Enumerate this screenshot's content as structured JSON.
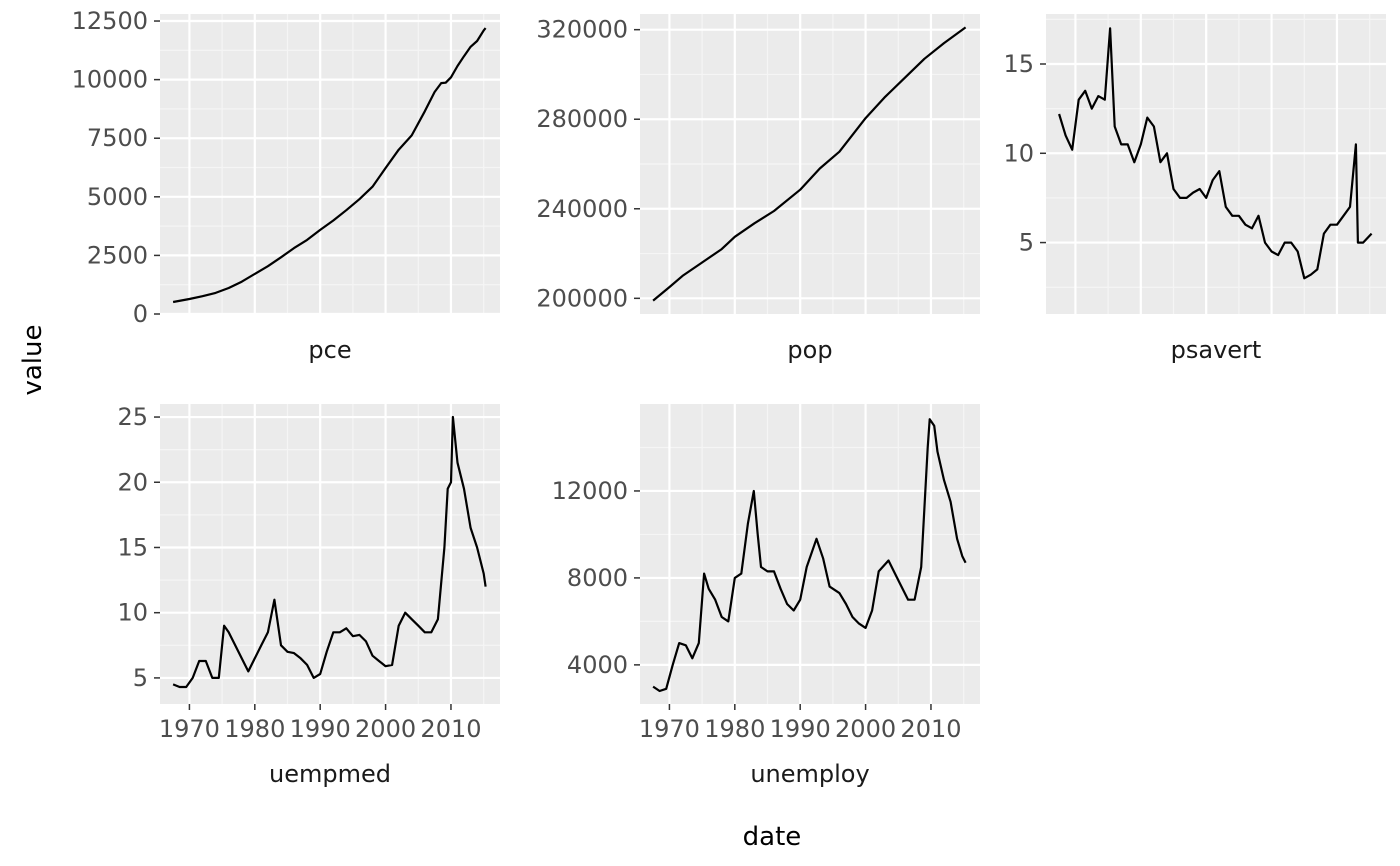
{
  "figure": {
    "xlabel": "date",
    "ylabel": "value",
    "colors": {
      "panel_background": "#ebebeb",
      "grid_major": "#ffffff",
      "grid_minor": "#f5f5f5",
      "line": "#000000",
      "tick_text": "#4d4d4d",
      "strip_text": "#1a1a1a"
    }
  },
  "chart_data": [
    {
      "type": "line",
      "facet": "pce",
      "xlabel": "date",
      "ylabel": "value",
      "grid": true,
      "xlim": [
        1965.5,
        2017.5
      ],
      "ylim": [
        0,
        12800
      ],
      "xticks": [
        1970,
        1980,
        1990,
        2000,
        2010
      ],
      "show_xtick_labels": false,
      "yticks": [
        0,
        2500,
        5000,
        7500,
        10000,
        12500
      ],
      "ytick_labels": [
        "0",
        "2500",
        "5000",
        "7500",
        "10000",
        "12500"
      ],
      "series": [
        {
          "x": [
            1967.5,
            1970,
            1972,
            1974,
            1976,
            1978,
            1980,
            1982,
            1984,
            1986,
            1988,
            1990,
            1992,
            1994,
            1996,
            1998,
            2000,
            2002,
            2004,
            2006,
            2007.5,
            2008.5,
            2009.2,
            2010,
            2011,
            2012,
            2013,
            2014,
            2015,
            2015.3
          ],
          "y": [
            510,
            640,
            760,
            900,
            1110,
            1380,
            1710,
            2040,
            2420,
            2810,
            3160,
            3590,
            3990,
            4430,
            4900,
            5430,
            6230,
            7010,
            7620,
            8650,
            9470,
            9850,
            9870,
            10100,
            10580,
            11000,
            11400,
            11650,
            12100,
            12200
          ]
        }
      ]
    },
    {
      "type": "line",
      "facet": "pop",
      "xlabel": "date",
      "ylabel": "value",
      "grid": true,
      "xlim": [
        1965.5,
        2017.5
      ],
      "ylim": [
        193000,
        327000
      ],
      "xticks": [
        1970,
        1980,
        1990,
        2000,
        2010
      ],
      "show_xtick_labels": false,
      "yticks": [
        200000,
        240000,
        280000,
        320000
      ],
      "ytick_labels": [
        "200000",
        "240000",
        "280000",
        "320000"
      ],
      "series": [
        {
          "x": [
            1967.5,
            1970,
            1972,
            1975,
            1978,
            1980,
            1983,
            1986,
            1990,
            1993,
            1996,
            2000,
            2003,
            2006,
            2009,
            2012,
            2015.3
          ],
          "y": [
            199000,
            205000,
            210000,
            216000,
            222000,
            227500,
            233500,
            239000,
            248500,
            258000,
            265500,
            280500,
            290000,
            298500,
            307000,
            314000,
            321000
          ]
        }
      ]
    },
    {
      "type": "line",
      "facet": "psavert",
      "xlabel": "date",
      "ylabel": "value",
      "grid": true,
      "xlim": [
        1965.5,
        2017.5
      ],
      "ylim": [
        1.0,
        17.8
      ],
      "xticks": [
        1970,
        1980,
        1990,
        2000,
        2010
      ],
      "show_xtick_labels": false,
      "yticks": [
        5,
        10,
        15
      ],
      "ytick_labels": [
        "5",
        "10",
        "15"
      ],
      "series": [
        {
          "x": [
            1967.5,
            1968.5,
            1969.5,
            1970.5,
            1971.5,
            1972.5,
            1973.5,
            1974.5,
            1975.3,
            1976,
            1977,
            1978,
            1979,
            1980,
            1981,
            1982,
            1983,
            1984,
            1985,
            1986,
            1987,
            1988,
            1989,
            1990,
            1991,
            1992,
            1993,
            1994,
            1995,
            1996,
            1997,
            1998,
            1999,
            2000,
            2001,
            2002,
            2003,
            2004,
            2005,
            2006,
            2007,
            2008,
            2009,
            2010,
            2011,
            2012,
            2012.9,
            2013.2,
            2014,
            2015.3
          ],
          "y": [
            12.2,
            11.0,
            10.2,
            13.0,
            13.5,
            12.5,
            13.2,
            13.0,
            17.0,
            11.5,
            10.5,
            10.5,
            9.5,
            10.5,
            12.0,
            11.5,
            9.5,
            10.0,
            8.0,
            7.5,
            7.5,
            7.8,
            8.0,
            7.5,
            8.5,
            9.0,
            7.0,
            6.5,
            6.5,
            6.0,
            5.8,
            6.5,
            5.0,
            4.5,
            4.3,
            5.0,
            5.0,
            4.5,
            3.0,
            3.2,
            3.5,
            5.5,
            6.0,
            6.0,
            6.5,
            7.0,
            10.5,
            5.0,
            5.0,
            5.5
          ]
        }
      ]
    },
    {
      "type": "line",
      "facet": "uempmed",
      "xlabel": "date",
      "ylabel": "value",
      "grid": true,
      "xlim": [
        1965.5,
        2017.5
      ],
      "ylim": [
        3.0,
        26.0
      ],
      "xticks": [
        1970,
        1980,
        1990,
        2000,
        2010
      ],
      "xtick_labels": [
        "1970",
        "1980",
        "1990",
        "2000",
        "2010"
      ],
      "show_xtick_labels": true,
      "yticks": [
        5,
        10,
        15,
        20,
        25
      ],
      "ytick_labels": [
        "5",
        "10",
        "15",
        "20",
        "25"
      ],
      "series": [
        {
          "x": [
            1967.5,
            1968.5,
            1969.5,
            1970.5,
            1971.5,
            1972.5,
            1973.5,
            1974.5,
            1975.3,
            1976,
            1977,
            1978,
            1979,
            1980,
            1981,
            1982,
            1983,
            1984,
            1985,
            1986,
            1987,
            1988,
            1989,
            1990,
            1991,
            1992,
            1993,
            1994,
            1995,
            1996,
            1997,
            1998,
            1999,
            2000,
            2001,
            2002,
            2003,
            2004,
            2005,
            2006,
            2007,
            2008,
            2009,
            2009.5,
            2010,
            2010.3,
            2011,
            2012,
            2013,
            2014,
            2015,
            2015.3
          ],
          "y": [
            4.5,
            4.3,
            4.3,
            5.0,
            6.3,
            6.3,
            5.0,
            5.0,
            9.0,
            8.5,
            7.5,
            6.5,
            5.5,
            6.5,
            7.5,
            8.5,
            11.0,
            7.5,
            7.0,
            6.9,
            6.5,
            6.0,
            5.0,
            5.3,
            7.0,
            8.5,
            8.5,
            8.8,
            8.2,
            8.3,
            7.8,
            6.7,
            6.3,
            5.9,
            6.0,
            9.0,
            10.0,
            9.5,
            9.0,
            8.5,
            8.5,
            9.5,
            15.0,
            19.5,
            20.0,
            25.0,
            21.5,
            19.5,
            16.5,
            15.0,
            13.0,
            12.0
          ]
        }
      ]
    },
    {
      "type": "line",
      "facet": "unemploy",
      "xlabel": "date",
      "ylabel": "value",
      "grid": true,
      "xlim": [
        1965.5,
        2017.5
      ],
      "ylim": [
        2200,
        16000
      ],
      "xticks": [
        1970,
        1980,
        1990,
        2000,
        2010
      ],
      "xtick_labels": [
        "1970",
        "1980",
        "1990",
        "2000",
        "2010"
      ],
      "show_xtick_labels": true,
      "yticks": [
        4000,
        8000,
        12000
      ],
      "ytick_labels": [
        "4000",
        "8000",
        "12000"
      ],
      "series": [
        {
          "x": [
            1967.5,
            1968.5,
            1969.5,
            1970.5,
            1971.5,
            1972.5,
            1973.5,
            1974.5,
            1975.3,
            1976,
            1977,
            1978,
            1979,
            1980,
            1981,
            1982,
            1982.9,
            1983.5,
            1984,
            1985,
            1986,
            1987,
            1988,
            1989,
            1990,
            1991,
            1992.5,
            1993.5,
            1994.5,
            1996,
            1997,
            1998,
            1999,
            2000,
            2001,
            2002,
            2003.5,
            2004.5,
            2005.5,
            2006.5,
            2007.5,
            2008.5,
            2009.5,
            2009.8,
            2010.5,
            2011,
            2012,
            2013,
            2014,
            2014.8,
            2015.3
          ],
          "y": [
            3000,
            2800,
            2900,
            4000,
            5000,
            4900,
            4300,
            5000,
            8200,
            7500,
            7000,
            6200,
            6000,
            8000,
            8200,
            10500,
            12000,
            10000,
            8500,
            8300,
            8300,
            7500,
            6800,
            6500,
            7000,
            8500,
            9800,
            8900,
            7600,
            7300,
            6800,
            6200,
            5900,
            5700,
            6500,
            8300,
            8800,
            8200,
            7600,
            7000,
            7000,
            8500,
            14000,
            15300,
            15000,
            13800,
            12500,
            11500,
            9800,
            9000,
            8700
          ]
        }
      ]
    }
  ]
}
